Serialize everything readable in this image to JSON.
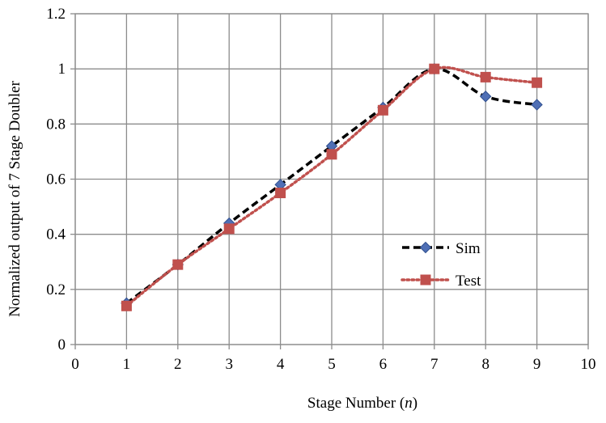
{
  "chart_data": {
    "type": "line",
    "xlabel_text": "Stage Number (",
    "xlabel_var": "n",
    "xlabel_close": ")",
    "ylabel": "Normalized output of 7 Stage Doubler",
    "xlim": [
      0,
      10
    ],
    "ylim": [
      0,
      1.2
    ],
    "x_ticks": [
      "0",
      "1",
      "2",
      "3",
      "4",
      "5",
      "6",
      "7",
      "8",
      "9",
      "10"
    ],
    "y_ticks": [
      "0",
      "0.2",
      "0.4",
      "0.6",
      "0.8",
      "1",
      "1.2"
    ],
    "grid": true,
    "legend_position": "right-middle",
    "series": [
      {
        "name": "Sim",
        "color": "#000000",
        "marker_color": "#4f6fb5",
        "marker": "diamond",
        "line_style": "dashed",
        "x": [
          1,
          2,
          3,
          4,
          5,
          6,
          7,
          8,
          9
        ],
        "y": [
          0.15,
          0.29,
          0.44,
          0.58,
          0.72,
          0.86,
          1.0,
          0.9,
          0.87
        ]
      },
      {
        "name": "Test",
        "color": "#c0504d",
        "marker_color": "#c0504d",
        "marker": "square",
        "line_style": "dotted",
        "x": [
          1,
          2,
          3,
          4,
          5,
          6,
          7,
          8,
          9
        ],
        "y": [
          0.14,
          0.29,
          0.42,
          0.55,
          0.69,
          0.85,
          1.0,
          0.97,
          0.95
        ]
      }
    ]
  }
}
